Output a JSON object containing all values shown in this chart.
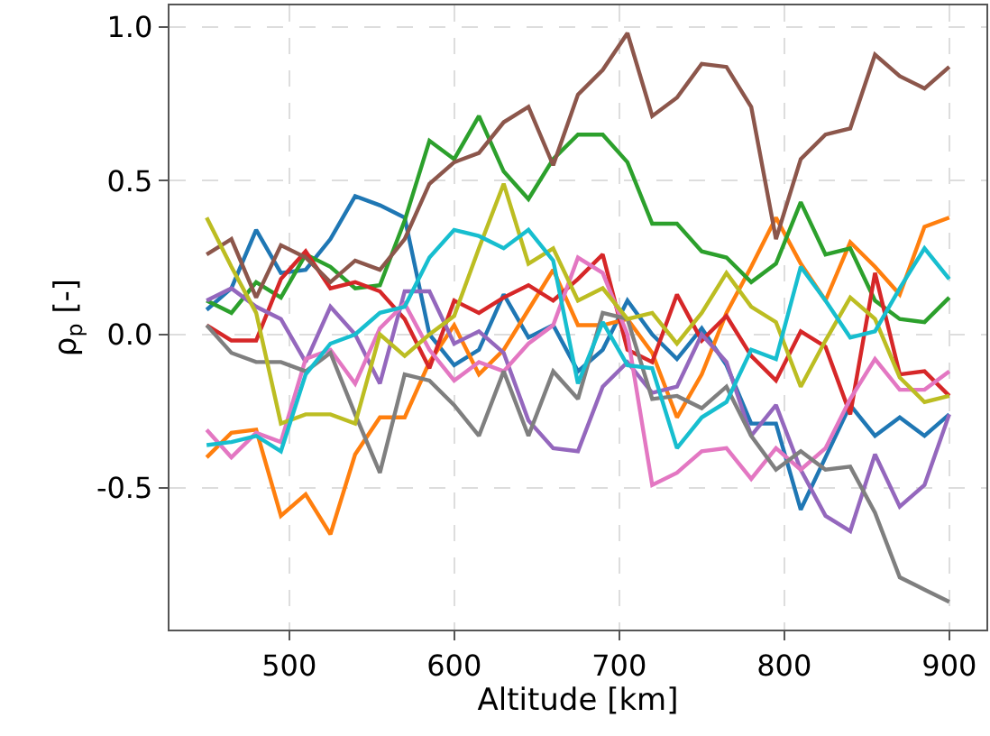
{
  "chart_data": {
    "type": "line",
    "xlabel": "Altitude [km]",
    "ylabel": "ρ$_{p}$ [-]",
    "x": [
      450,
      465,
      480,
      495,
      510,
      525,
      540,
      555,
      570,
      585,
      600,
      615,
      630,
      645,
      660,
      675,
      690,
      705,
      720,
      735,
      750,
      765,
      780,
      795,
      810,
      825,
      840,
      855,
      870,
      885,
      900
    ],
    "xlim": [
      427.5,
      922.5
    ],
    "ylim": [
      -0.96,
      1.07
    ],
    "xticks": [
      500,
      600,
      700,
      800,
      900
    ],
    "yticks": [
      {
        "value": -0.5,
        "label": "-0.5"
      },
      {
        "value": 0,
        "label": "0.0"
      },
      {
        "value": 0.5,
        "label": "0.5"
      },
      {
        "value": 1.0,
        "label": "1.0"
      }
    ],
    "grid": true,
    "marker": "none",
    "line_style": "solid",
    "series": [
      {
        "color": "#1f77b4",
        "values": [
          0.08,
          0.15,
          0.34,
          0.2,
          0.21,
          0.31,
          0.45,
          0.42,
          0.38,
          0.0,
          -0.1,
          -0.05,
          0.13,
          -0.01,
          0.03,
          -0.12,
          -0.05,
          0.11,
          0.0,
          -0.08,
          0.02,
          -0.1,
          -0.29,
          -0.29,
          -0.57,
          -0.4,
          -0.23,
          -0.33,
          -0.27,
          -0.33,
          -0.26
        ]
      },
      {
        "color": "#ff7f0e",
        "values": [
          -0.4,
          -0.32,
          -0.31,
          -0.59,
          -0.52,
          -0.65,
          -0.39,
          -0.27,
          -0.27,
          -0.09,
          0.03,
          -0.13,
          -0.05,
          0.08,
          0.21,
          0.03,
          0.03,
          0.05,
          -0.06,
          -0.27,
          -0.13,
          0.07,
          0.22,
          0.38,
          0.23,
          0.11,
          0.3,
          0.22,
          0.13,
          0.35,
          0.38
        ]
      },
      {
        "color": "#2ca02c",
        "values": [
          0.11,
          0.07,
          0.17,
          0.12,
          0.26,
          0.22,
          0.15,
          0.16,
          0.37,
          0.63,
          0.57,
          0.71,
          0.53,
          0.44,
          0.57,
          0.65,
          0.65,
          0.56,
          0.36,
          0.36,
          0.27,
          0.25,
          0.17,
          0.23,
          0.43,
          0.26,
          0.28,
          0.11,
          0.05,
          0.04,
          0.12
        ]
      },
      {
        "color": "#d62728",
        "values": [
          0.03,
          -0.02,
          -0.02,
          0.18,
          0.27,
          0.15,
          0.17,
          0.14,
          0.05,
          -0.11,
          0.11,
          0.07,
          0.12,
          0.16,
          0.11,
          0.18,
          0.26,
          -0.05,
          -0.09,
          0.13,
          -0.02,
          0.06,
          -0.07,
          -0.15,
          0.01,
          -0.04,
          -0.26,
          0.2,
          -0.13,
          -0.12,
          -0.2
        ]
      },
      {
        "color": "#9467bd",
        "values": [
          0.11,
          0.15,
          0.09,
          0.05,
          -0.09,
          0.09,
          0.0,
          -0.16,
          0.14,
          0.14,
          -0.03,
          0.01,
          -0.06,
          -0.28,
          -0.37,
          -0.38,
          -0.17,
          -0.09,
          -0.19,
          -0.17,
          0.0,
          -0.09,
          -0.33,
          -0.23,
          -0.44,
          -0.59,
          -0.64,
          -0.39,
          -0.56,
          -0.49,
          -0.26
        ]
      },
      {
        "color": "#8c564b",
        "values": [
          0.26,
          0.31,
          0.12,
          0.29,
          0.25,
          0.17,
          0.24,
          0.21,
          0.31,
          0.49,
          0.56,
          0.59,
          0.69,
          0.74,
          0.55,
          0.78,
          0.86,
          0.98,
          0.71,
          0.77,
          0.88,
          0.87,
          0.74,
          0.31,
          0.57,
          0.65,
          0.67,
          0.91,
          0.84,
          0.8,
          0.87
        ]
      },
      {
        "color": "#e377c2",
        "values": [
          -0.31,
          -0.4,
          -0.32,
          -0.35,
          -0.08,
          -0.05,
          -0.16,
          0.02,
          0.1,
          -0.05,
          -0.15,
          -0.09,
          -0.12,
          -0.03,
          0.03,
          0.25,
          0.2,
          0.0,
          -0.49,
          -0.45,
          -0.38,
          -0.37,
          -0.47,
          -0.37,
          -0.44,
          -0.37,
          -0.21,
          -0.08,
          -0.18,
          -0.18,
          -0.12
        ]
      },
      {
        "color": "#7f7f7f",
        "values": [
          0.03,
          -0.06,
          -0.09,
          -0.09,
          -0.12,
          -0.06,
          -0.26,
          -0.45,
          -0.13,
          -0.15,
          -0.23,
          -0.33,
          -0.12,
          -0.33,
          -0.12,
          -0.21,
          0.07,
          0.05,
          -0.21,
          -0.2,
          -0.24,
          -0.17,
          -0.33,
          -0.44,
          -0.38,
          -0.44,
          -0.43,
          -0.58,
          -0.79,
          -0.83,
          -0.87
        ]
      },
      {
        "color": "#bcbd22",
        "values": [
          0.38,
          0.22,
          0.07,
          -0.29,
          -0.26,
          -0.26,
          -0.29,
          0.0,
          -0.07,
          0.0,
          0.06,
          0.28,
          0.49,
          0.23,
          0.28,
          0.11,
          0.15,
          0.05,
          0.07,
          -0.03,
          0.07,
          0.2,
          0.09,
          0.04,
          -0.17,
          -0.02,
          0.12,
          0.05,
          -0.14,
          -0.22,
          -0.2
        ]
      },
      {
        "color": "#17becf",
        "values": [
          -0.36,
          -0.35,
          -0.33,
          -0.38,
          -0.13,
          -0.03,
          0.0,
          0.07,
          0.09,
          0.25,
          0.34,
          0.32,
          0.28,
          0.34,
          0.24,
          -0.16,
          0.04,
          -0.1,
          -0.11,
          -0.37,
          -0.27,
          -0.22,
          -0.05,
          -0.08,
          0.22,
          0.11,
          -0.01,
          0.01,
          0.15,
          0.28,
          0.18
        ]
      }
    ]
  }
}
